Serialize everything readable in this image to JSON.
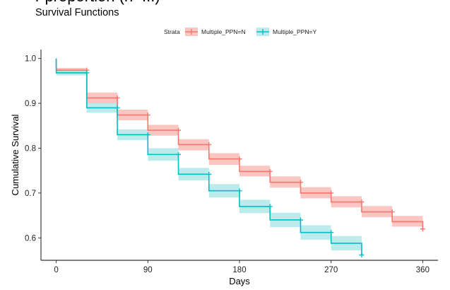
{
  "clipped_title": "r proportion (n=...)",
  "chart_data": {
    "type": "line",
    "title": "Survival Functions",
    "xlabel": "Days",
    "ylabel": "Cumulative Survival",
    "xlim": [
      -15,
      375
    ],
    "ylim": [
      0.55,
      1.02
    ],
    "x_ticks": [
      0,
      90,
      180,
      270,
      360
    ],
    "y_ticks": [
      0.6,
      0.7,
      0.8,
      0.9,
      1.0
    ],
    "x_tick_labels": [
      "0",
      "90",
      "180",
      "270",
      "360"
    ],
    "y_tick_labels": [
      "0.6",
      "0.7",
      "0.8",
      "0.9",
      "1.0"
    ],
    "grid": false,
    "legend": {
      "title": "Strata",
      "placement": "top-center"
    },
    "series": [
      {
        "name": "Multiple_PPN=N",
        "color": "#F8766D",
        "fill": "#F8B3AE",
        "x": [
          0,
          30,
          60,
          90,
          120,
          150,
          180,
          210,
          240,
          270,
          300,
          330,
          360
        ],
        "y": [
          0.974,
          0.912,
          0.874,
          0.84,
          0.808,
          0.776,
          0.748,
          0.724,
          0.7,
          0.68,
          0.658,
          0.636,
          0.62
        ],
        "lower": [
          0.966,
          0.9,
          0.862,
          0.828,
          0.795,
          0.763,
          0.737,
          0.712,
          0.688,
          0.668,
          0.646,
          0.625,
          0.62
        ],
        "upper": [
          0.979,
          0.924,
          0.886,
          0.852,
          0.82,
          0.789,
          0.761,
          0.737,
          0.713,
          0.693,
          0.671,
          0.649,
          0.62
        ],
        "censor_x": [
          30,
          60,
          90,
          120,
          150,
          180,
          210,
          240,
          270,
          300,
          330,
          360
        ]
      },
      {
        "name": "Multiple_PPN=Y",
        "color": "#00BFC4",
        "fill": "#A6E4E6",
        "x": [
          0,
          30,
          60,
          90,
          120,
          150,
          180,
          210,
          240,
          270,
          300
        ],
        "y": [
          0.968,
          0.89,
          0.83,
          0.786,
          0.742,
          0.705,
          0.67,
          0.64,
          0.612,
          0.588,
          0.562
        ],
        "lower": [
          0.962,
          0.879,
          0.818,
          0.772,
          0.728,
          0.69,
          0.655,
          0.624,
          0.596,
          0.572,
          0.562
        ],
        "upper": [
          0.973,
          0.901,
          0.842,
          0.8,
          0.756,
          0.72,
          0.685,
          0.656,
          0.628,
          0.604,
          0.562
        ],
        "censor_x": [
          30,
          60,
          90,
          120,
          150,
          180,
          210,
          240,
          270,
          300
        ]
      }
    ]
  }
}
